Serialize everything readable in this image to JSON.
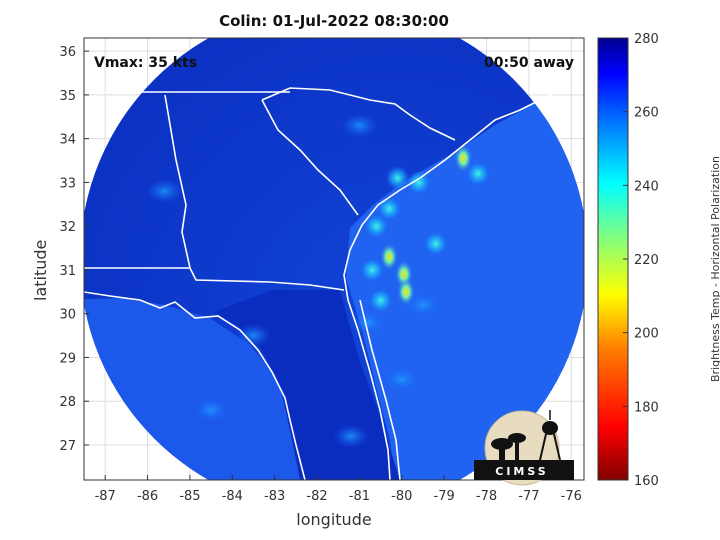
{
  "chart_data": {
    "type": "heatmap",
    "title": "Colin: 01-Jul-2022 08:30:00",
    "xlabel": "longitude",
    "ylabel": "latitude",
    "xlim": [
      -87.5,
      -75.7
    ],
    "ylim": [
      26.2,
      36.3
    ],
    "xticks": [
      "-87",
      "-86",
      "-85",
      "-84",
      "-83",
      "-82",
      "-81",
      "-80",
      "-79",
      "-78",
      "-77",
      "-76"
    ],
    "yticks": [
      "36",
      "35",
      "34",
      "33",
      "32",
      "31",
      "30",
      "29",
      "28",
      "27"
    ],
    "grid": true,
    "annotations": {
      "vmax": "Vmax: 35 kts",
      "time_away": "00:50 away"
    },
    "colorbar": {
      "label": "Brightness Temp - Horizontal Polarization",
      "range": [
        160,
        280
      ],
      "ticks": [
        "280",
        "260",
        "240",
        "220",
        "200",
        "180",
        "160"
      ],
      "colormap": "jet"
    },
    "storm_center": {
      "lon": -80.0,
      "lat": 31.0
    },
    "bands": [
      {
        "lon": -79.95,
        "lat": 30.9,
        "value": 222
      },
      {
        "lon": -79.9,
        "lat": 30.5,
        "value": 228
      },
      {
        "lon": -80.3,
        "lat": 31.3,
        "value": 230
      },
      {
        "lon": -80.7,
        "lat": 31.0,
        "value": 235
      },
      {
        "lon": -80.6,
        "lat": 32.0,
        "value": 240
      },
      {
        "lon": -80.3,
        "lat": 32.4,
        "value": 238
      },
      {
        "lon": -80.1,
        "lat": 33.1,
        "value": 240
      },
      {
        "lon": -79.6,
        "lat": 33.0,
        "value": 245
      },
      {
        "lon": -78.55,
        "lat": 33.55,
        "value": 225
      },
      {
        "lon": -78.2,
        "lat": 33.2,
        "value": 232
      },
      {
        "lon": -79.2,
        "lat": 31.6,
        "value": 245
      },
      {
        "lon": -80.5,
        "lat": 30.3,
        "value": 246
      },
      {
        "lon": -80.8,
        "lat": 29.8,
        "value": 248
      },
      {
        "lon": -80.0,
        "lat": 28.5,
        "value": 250
      },
      {
        "lon": -79.5,
        "lat": 30.2,
        "value": 250
      },
      {
        "lon": -81.0,
        "lat": 34.3,
        "value": 255
      },
      {
        "lon": -85.6,
        "lat": 32.8,
        "value": 256
      },
      {
        "lon": -83.5,
        "lat": 29.5,
        "value": 258
      },
      {
        "lon": -84.5,
        "lat": 27.8,
        "value": 258
      },
      {
        "lon": -81.2,
        "lat": 27.2,
        "value": 255
      }
    ],
    "logo": "CIMSS"
  }
}
